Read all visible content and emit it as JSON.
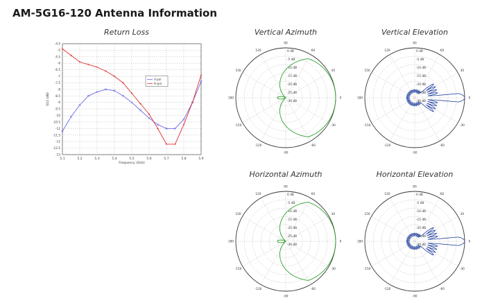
{
  "page": {
    "title": "AM-5G16-120 Antenna Information"
  },
  "colors": {
    "green": "#2ea32e",
    "blue": "#1f3f9e",
    "red": "#e03030",
    "bluePlot": "#6a6ae8"
  },
  "chart_data": [
    {
      "type": "line",
      "title": "Return Loss",
      "xlabel": "Frequency (GHz)",
      "ylabel": "S11 (dB)",
      "xlim": [
        5.1,
        5.9
      ],
      "ylim": [
        -13,
        -4.5
      ],
      "x": [
        5.1,
        5.15,
        5.2,
        5.25,
        5.3,
        5.35,
        5.4,
        5.45,
        5.5,
        5.55,
        5.6,
        5.65,
        5.7,
        5.75,
        5.8,
        5.85,
        5.9
      ],
      "xticks": [
        "5.1",
        "5.2",
        "5.3",
        "5.4",
        "5.5",
        "5.6",
        "5.7",
        "5.8",
        "5.9"
      ],
      "yticks": [
        "-4.5",
        "-5",
        "-5.5",
        "-6",
        "-6.5",
        "-7",
        "-7.5",
        "-8",
        "-8.5",
        "-9",
        "-9.5",
        "-10",
        "-10.5",
        "-11",
        "-11.5",
        "-12",
        "-12.5",
        "-13"
      ],
      "legend_position": "center-right",
      "grid": true,
      "series": [
        {
          "name": "V-pol",
          "color": "#6a6ae8",
          "values": [
            -11.2,
            -10.1,
            -9.2,
            -8.5,
            -8.2,
            -8.0,
            -8.1,
            -8.5,
            -9.0,
            -9.6,
            -10.2,
            -10.7,
            -11.0,
            -11.0,
            -10.3,
            -9.0,
            -7.4
          ]
        },
        {
          "name": "H-pol",
          "color": "#e03030",
          "values": [
            -4.9,
            -5.4,
            -5.9,
            -6.1,
            -6.3,
            -6.6,
            -7.0,
            -7.5,
            -8.3,
            -9.1,
            -9.9,
            -11.0,
            -12.2,
            -12.2,
            -10.7,
            -9.0,
            -6.9
          ]
        }
      ]
    },
    {
      "type": "polar",
      "title": "Vertical Azimuth",
      "color": "#2ea32e",
      "ring_labels": [
        "0 dB",
        "-5 dB",
        "-10 dB",
        "-15 dB",
        "-20 dB",
        "-25 dB",
        "-30 dB"
      ],
      "angle_labels": [
        "0",
        "30",
        "60",
        "90",
        "120",
        "150",
        "180",
        "-150",
        "-120",
        "-90",
        "-60",
        "-30"
      ],
      "pattern": "sector"
    },
    {
      "type": "polar",
      "title": "Vertical Elevation",
      "color": "#1f3f9e",
      "ring_labels": [
        "0 dB",
        "-5 dB",
        "-10 dB",
        "-15 dB",
        "-20 dB",
        "-25 dB",
        "-30 dB"
      ],
      "angle_labels": [
        "0",
        "30",
        "60",
        "90",
        "120",
        "150",
        "180",
        "-150",
        "-120",
        "-90",
        "-60",
        "-30"
      ],
      "pattern": "pencil"
    },
    {
      "type": "polar",
      "title": "Horizontal Azimuth",
      "color": "#2ea32e",
      "ring_labels": [
        "0 dB",
        "-5 dB",
        "-10 dB",
        "-15 dB",
        "-20 dB",
        "-25 dB",
        "-30 dB"
      ],
      "angle_labels": [
        "0",
        "30",
        "60",
        "90",
        "120",
        "150",
        "180",
        "-150",
        "-120",
        "-90",
        "-60",
        "-30"
      ],
      "pattern": "sector"
    },
    {
      "type": "polar",
      "title": "Horizontal Elevation",
      "color": "#1f3f9e",
      "ring_labels": [
        "0 dB",
        "-5 dB",
        "-10 dB",
        "-15 dB",
        "-20 dB",
        "-25 dB",
        "-30 dB"
      ],
      "angle_labels": [
        "0",
        "30",
        "60",
        "90",
        "120",
        "150",
        "180",
        "-150",
        "-120",
        "-90",
        "-60",
        "-30"
      ],
      "pattern": "pencil"
    }
  ]
}
